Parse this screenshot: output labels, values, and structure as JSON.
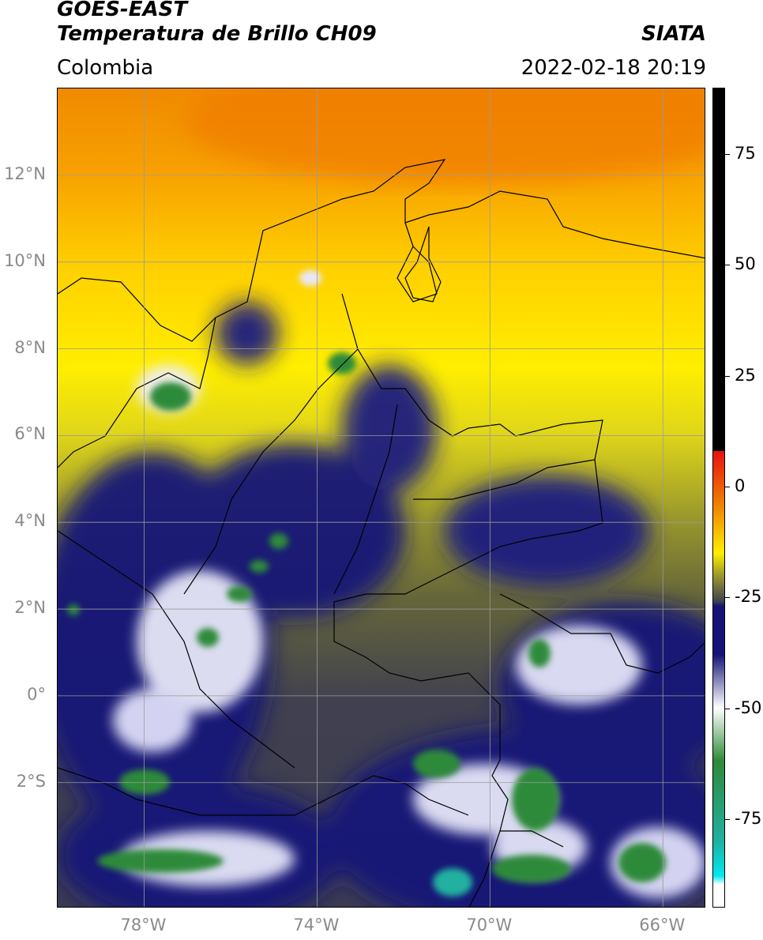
{
  "header": {
    "satellite": "GOES-EAST",
    "product": "Temperatura de Brillo CH09",
    "agency": "SIATA",
    "region": "Colombia",
    "datetime": "2022-02-18 20:19"
  },
  "map": {
    "lat_ticks": [
      {
        "value": 12,
        "label": "12°N"
      },
      {
        "value": 10,
        "label": "10°N"
      },
      {
        "value": 8,
        "label": "8°N"
      },
      {
        "value": 6,
        "label": "6°N"
      },
      {
        "value": 4,
        "label": "4°N"
      },
      {
        "value": 2,
        "label": "2°N"
      },
      {
        "value": 0,
        "label": "0°"
      },
      {
        "value": -2,
        "label": "2°S"
      }
    ],
    "lon_ticks": [
      {
        "value": -78,
        "label": "78°W"
      },
      {
        "value": -74,
        "label": "74°W"
      },
      {
        "value": -70,
        "label": "70°W"
      },
      {
        "value": -66,
        "label": "66°W"
      }
    ],
    "lon_range": [
      -80,
      -65
    ],
    "lat_range": [
      -4.9,
      14
    ],
    "gridlines": true
  },
  "colorbar": {
    "ticks": [
      {
        "value": 75,
        "label": "75"
      },
      {
        "value": 50,
        "label": "50"
      },
      {
        "value": 25,
        "label": "25"
      },
      {
        "value": 0,
        "label": "0"
      },
      {
        "value": -25,
        "label": "-25"
      },
      {
        "value": -50,
        "label": "-50"
      },
      {
        "value": -75,
        "label": "-75"
      }
    ],
    "range": [
      -95,
      90
    ],
    "colors": {
      "black": "#000000",
      "red": "#e81010",
      "orange": "#f08a00",
      "yellow": "#ffee00",
      "olive": "#9c9a2c",
      "gray": "#404050",
      "navy": "#141478",
      "white": "#ffffff",
      "green": "#2f8a3a",
      "teal": "#20b0a0",
      "cyan": "#00e8f0"
    }
  }
}
